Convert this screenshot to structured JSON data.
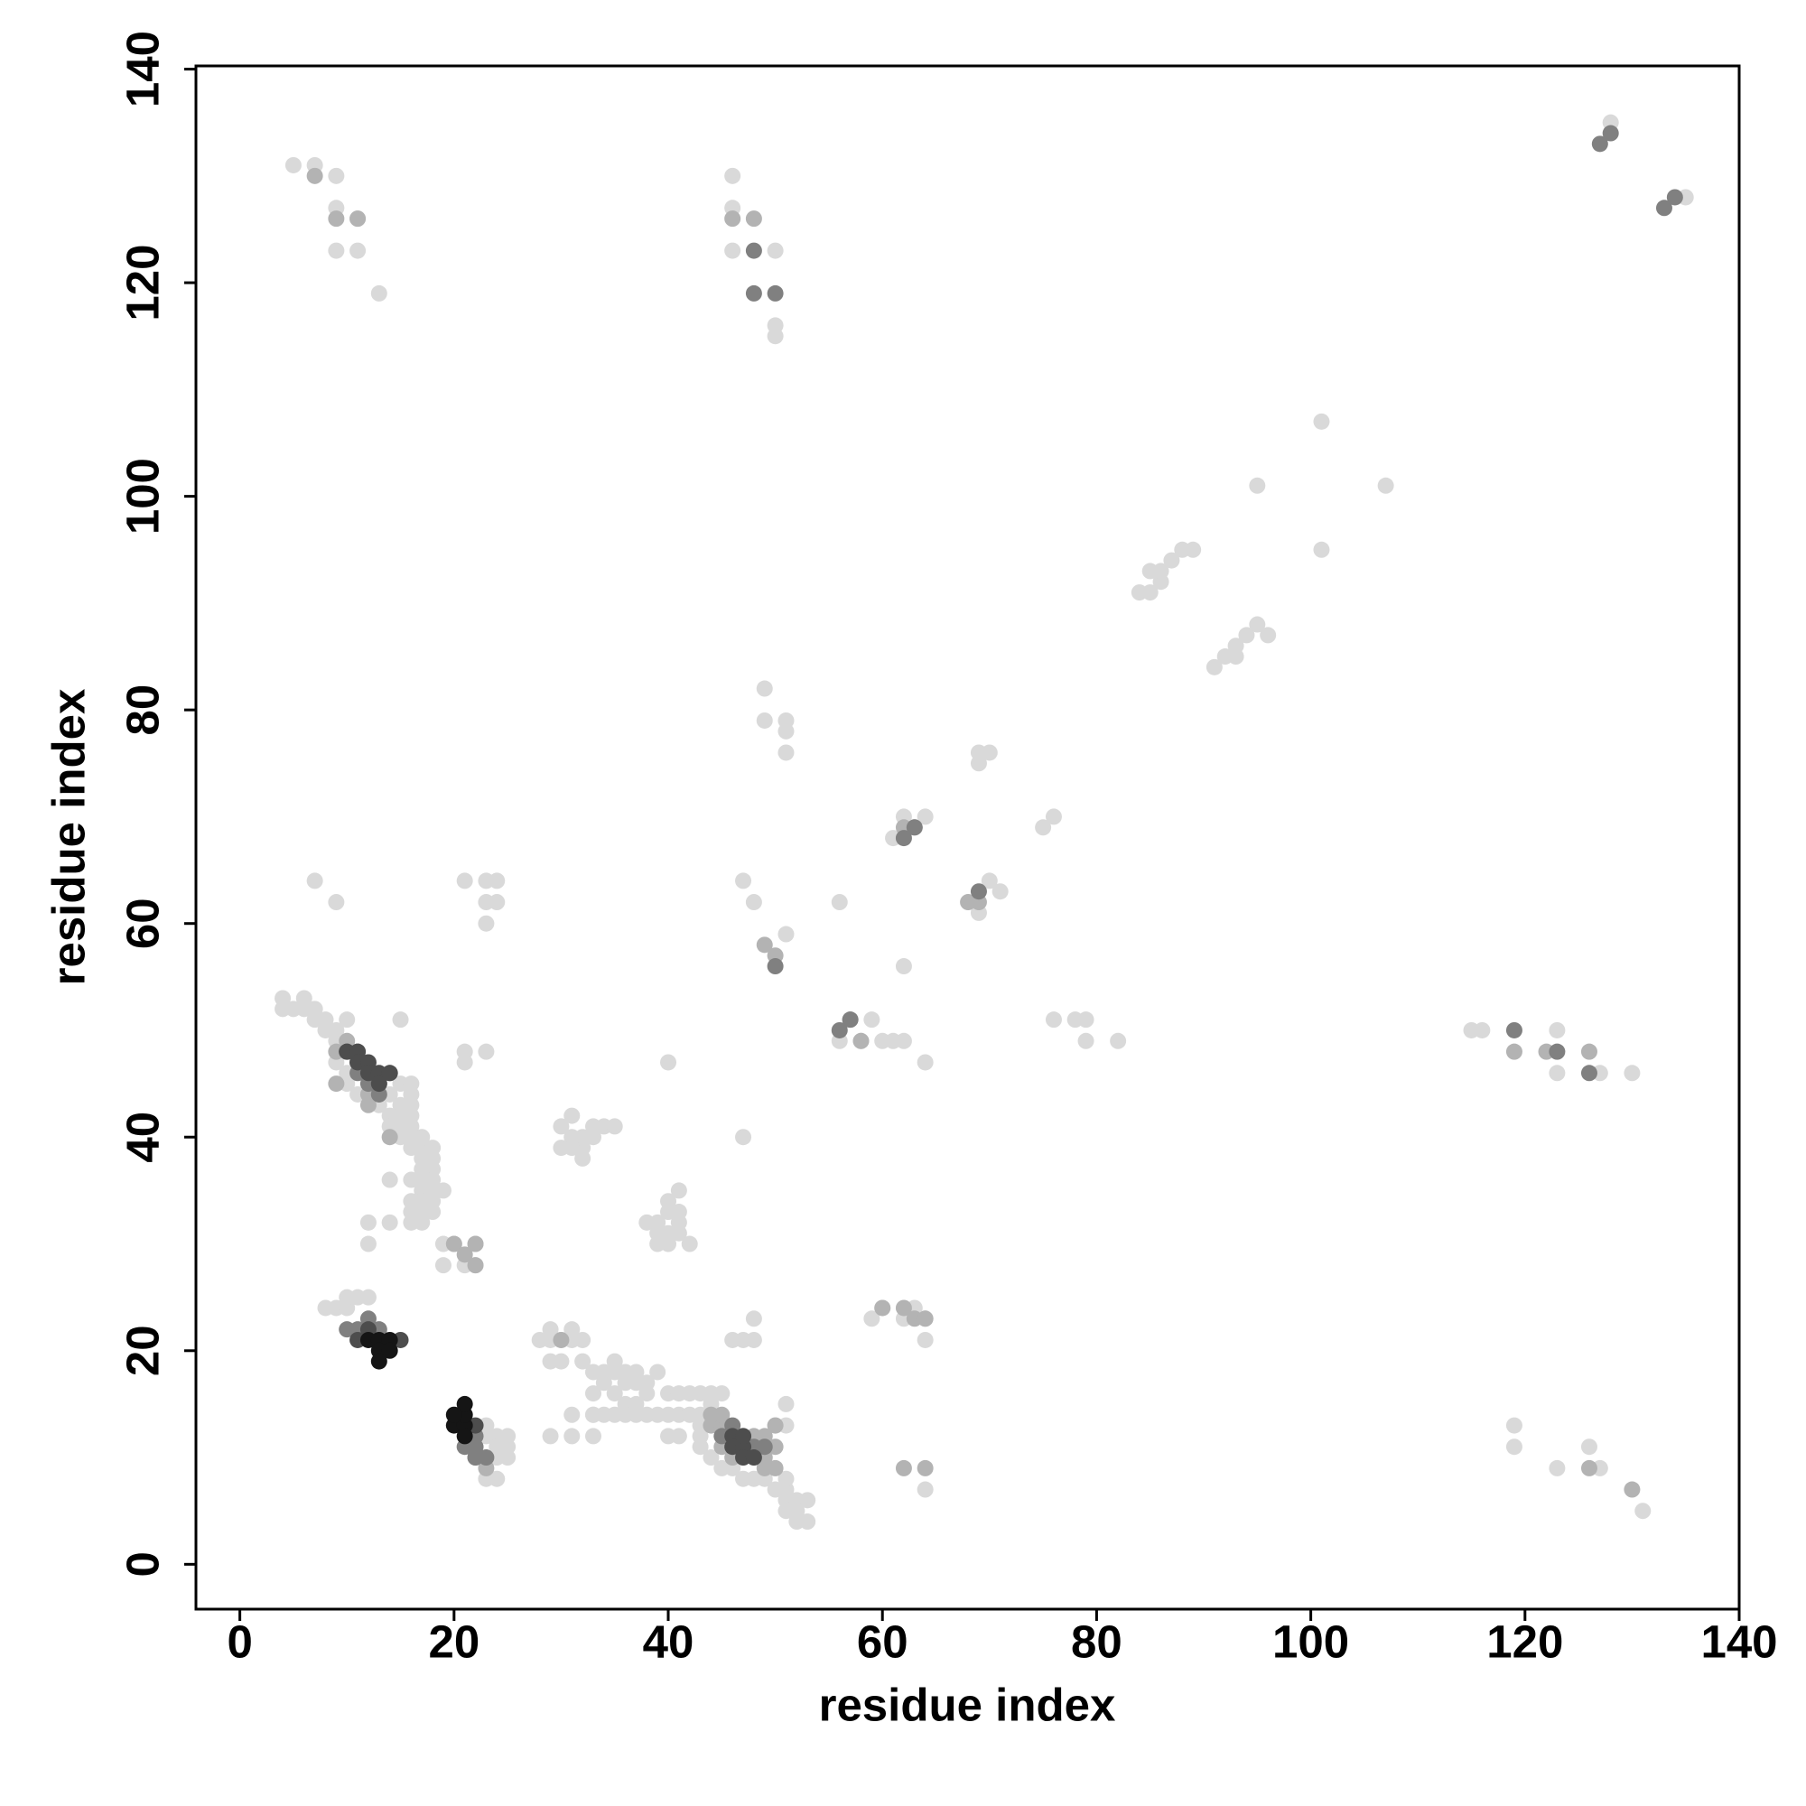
{
  "chart_data": {
    "type": "scatter",
    "xlabel": "residue index",
    "ylabel": "residue index",
    "xlim": [
      -4.1,
      140
    ],
    "ylim": [
      -4.2,
      140.3
    ],
    "xticks": [
      0,
      20,
      40,
      60,
      80,
      100,
      120,
      140
    ],
    "yticks": [
      0,
      20,
      40,
      60,
      80,
      100,
      120,
      140
    ],
    "series": [
      {
        "color": "#d9d9d9",
        "x": [
          5,
          7,
          9,
          9,
          9,
          11,
          11,
          13,
          46,
          46,
          50,
          50,
          50,
          46,
          128,
          135,
          101,
          95,
          107,
          101,
          84,
          85,
          86,
          85,
          86,
          87,
          88,
          89,
          91,
          92,
          93,
          94,
          95,
          96,
          93,
          49,
          49,
          51,
          51,
          51,
          69,
          70,
          69,
          76,
          75,
          62,
          64,
          61,
          56,
          62,
          70,
          71,
          69,
          7,
          9,
          21,
          23,
          24,
          23,
          24,
          23,
          47,
          48,
          51,
          76,
          78,
          79,
          79,
          82,
          56,
          58,
          59,
          60,
          61,
          62,
          64,
          115,
          116,
          123,
          123,
          127,
          130,
          40,
          47,
          23,
          21,
          21,
          15,
          4,
          4,
          5,
          6,
          6,
          7,
          7,
          8,
          8,
          9,
          10,
          9,
          9,
          10,
          10,
          11,
          12,
          13,
          14,
          15,
          16,
          16,
          16,
          15,
          14,
          15,
          16,
          14,
          15,
          16,
          15,
          16,
          17,
          16,
          17,
          18,
          17,
          18,
          17,
          18,
          16,
          17,
          18,
          17,
          18,
          19,
          16,
          17,
          18,
          16,
          17,
          18,
          16,
          17,
          14,
          12,
          14,
          12,
          19,
          20,
          22,
          19,
          21,
          22,
          8,
          9,
          10,
          10,
          11,
          12,
          23,
          23,
          24,
          24,
          24,
          23,
          24,
          25,
          25,
          25,
          31,
          30,
          31,
          32,
          33,
          32,
          32,
          33,
          34,
          35,
          30,
          31,
          38,
          39,
          40,
          40,
          41,
          41,
          39,
          40,
          41,
          39,
          40,
          42,
          41,
          32,
          33,
          34,
          35,
          35,
          36,
          37,
          38,
          39,
          34,
          36,
          37,
          38,
          40,
          41,
          42,
          43,
          44,
          33,
          35,
          36,
          37,
          33,
          34,
          35,
          36,
          37,
          38,
          39,
          40,
          41,
          42,
          43,
          28,
          29,
          30,
          31,
          29,
          31,
          29,
          30,
          32,
          29,
          31,
          33,
          31,
          33,
          40,
          41,
          43,
          43,
          43,
          44,
          45,
          46,
          47,
          48,
          49,
          50,
          51,
          51,
          51,
          52,
          52,
          53,
          52,
          51,
          53,
          50,
          51,
          51,
          44,
          45,
          46,
          47,
          48,
          48,
          59,
          60,
          62,
          63,
          64,
          64,
          64,
          119,
          119,
          123,
          126,
          127,
          131
        ],
        "y": [
          131,
          131,
          127,
          123,
          130,
          123,
          126,
          119,
          130,
          127,
          123,
          116,
          115,
          123,
          135,
          128,
          107,
          101,
          101,
          95,
          91,
          91,
          92,
          93,
          93,
          94,
          95,
          95,
          84,
          85,
          86,
          87,
          88,
          87,
          85,
          82,
          79,
          79,
          78,
          76,
          76,
          76,
          75,
          70,
          69,
          70,
          70,
          68,
          62,
          56,
          64,
          63,
          61,
          64,
          62,
          64,
          64,
          64,
          62,
          62,
          60,
          64,
          62,
          59,
          51,
          51,
          51,
          49,
          49,
          49,
          49,
          51,
          49,
          49,
          49,
          47,
          50,
          50,
          50,
          46,
          46,
          46,
          47,
          40,
          48,
          48,
          47,
          51,
          53,
          52,
          52,
          53,
          52,
          52,
          51,
          51,
          50,
          50,
          51,
          49,
          47,
          46,
          45,
          44,
          44,
          43,
          44,
          45,
          45,
          44,
          43,
          43,
          42,
          42,
          42,
          41,
          41,
          41,
          40,
          40,
          40,
          39,
          39,
          39,
          38,
          38,
          37,
          37,
          36,
          36,
          36,
          35,
          35,
          35,
          34,
          34,
          34,
          33,
          33,
          33,
          32,
          32,
          36,
          32,
          32,
          30,
          30,
          30,
          30,
          28,
          28,
          28,
          24,
          24,
          24,
          25,
          25,
          25,
          13,
          12,
          12,
          11,
          10,
          8,
          8,
          12,
          11,
          10,
          42,
          41,
          40,
          40,
          40,
          39,
          38,
          41,
          41,
          41,
          39,
          39,
          32,
          32,
          33,
          34,
          33,
          35,
          31,
          31,
          31,
          30,
          30,
          30,
          32,
          19,
          18,
          18,
          19,
          18,
          18,
          18,
          17,
          18,
          17,
          17,
          17,
          16,
          16,
          16,
          16,
          16,
          15,
          16,
          16,
          15,
          15,
          14,
          14,
          14,
          14,
          14,
          14,
          14,
          14,
          14,
          14,
          14,
          21,
          21,
          21,
          21,
          22,
          22,
          19,
          19,
          21,
          12,
          12,
          12,
          14,
          14,
          12,
          12,
          13,
          12,
          11,
          10,
          9,
          9,
          8,
          8,
          8,
          7,
          7,
          8,
          6,
          6,
          5,
          4,
          4,
          5,
          6,
          13,
          13,
          15,
          16,
          16,
          21,
          21,
          21,
          23,
          23,
          24,
          23,
          24,
          23,
          21,
          7,
          13,
          11,
          9,
          11,
          9,
          5
        ]
      },
      {
        "color": "#b3b3b3",
        "x": [
          7,
          9,
          46,
          11,
          48,
          62,
          63,
          69,
          68,
          49,
          50,
          57,
          58,
          119,
          122,
          126,
          9,
          10,
          11,
          12,
          9,
          12,
          14,
          20,
          21,
          22,
          22,
          30,
          22,
          23,
          44,
          45,
          45,
          46,
          48,
          49,
          49,
          50,
          50,
          44,
          45,
          49,
          50,
          60,
          62,
          63,
          64,
          62,
          64,
          126,
          130
        ],
        "y": [
          130,
          126,
          126,
          126,
          126,
          69,
          69,
          62,
          62,
          58,
          57,
          51,
          49,
          48,
          48,
          48,
          48,
          49,
          48,
          44,
          45,
          43,
          40,
          30,
          29,
          30,
          28,
          21,
          10,
          9,
          13,
          13,
          11,
          10,
          12,
          12,
          10,
          9,
          11,
          14,
          14,
          9,
          13,
          24,
          24,
          23,
          23,
          9,
          9,
          9,
          7
        ]
      },
      {
        "color": "#808080",
        "x": [
          48,
          48,
          50,
          128,
          134,
          127,
          133,
          62,
          63,
          69,
          50,
          56,
          57,
          119,
          123,
          126,
          10,
          11,
          12,
          13,
          11,
          12,
          13,
          14,
          10,
          11,
          12,
          13,
          22,
          22,
          22,
          23,
          21,
          45,
          46,
          47,
          48,
          49
        ],
        "y": [
          123,
          119,
          119,
          134,
          128,
          133,
          127,
          68,
          69,
          63,
          56,
          50,
          51,
          50,
          48,
          46,
          48,
          47,
          46,
          45,
          46,
          45,
          44,
          46,
          22,
          22,
          23,
          22,
          12,
          11,
          10,
          10,
          11,
          12,
          13,
          12,
          11,
          11
        ]
      },
      {
        "color": "#4d4d4d",
        "x": [
          10,
          11,
          11,
          12,
          12,
          13,
          13,
          14,
          11,
          12,
          15,
          22,
          46,
          46,
          47,
          47,
          48,
          47
        ],
        "y": [
          48,
          48,
          47,
          47,
          46,
          46,
          45,
          46,
          21,
          22,
          21,
          13,
          12,
          11,
          11,
          10,
          10,
          12
        ]
      },
      {
        "color": "#151515",
        "x": [
          12,
          13,
          14,
          13,
          14,
          13,
          20,
          21,
          21,
          21,
          21,
          20
        ],
        "y": [
          21,
          21,
          21,
          20,
          20,
          19,
          13,
          13,
          14,
          15,
          12,
          14
        ]
      }
    ]
  }
}
